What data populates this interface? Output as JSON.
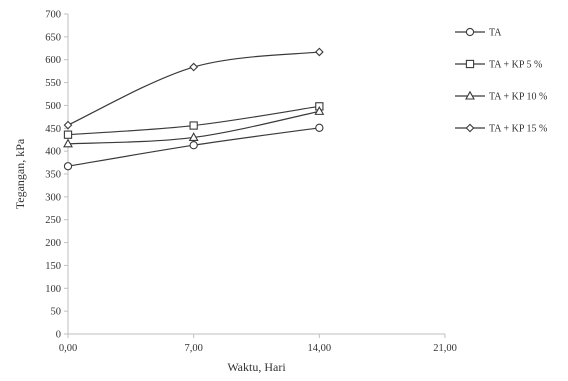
{
  "chart_data": {
    "type": "line",
    "xlabel": "Waktu, Hari",
    "ylabel": "Tegangan, kPa",
    "xlim": [
      0,
      21
    ],
    "ylim": [
      0,
      700
    ],
    "x_ticks": [
      0,
      7,
      14,
      21
    ],
    "x_tick_labels": [
      "0,00",
      "7,00",
      "14,00",
      "21,00"
    ],
    "y_ticks": [
      0,
      50,
      100,
      150,
      200,
      250,
      300,
      350,
      400,
      450,
      500,
      550,
      600,
      650,
      700
    ],
    "y_tick_labels": [
      "0",
      "50",
      "100",
      "150",
      "200",
      "250",
      "300",
      "350",
      "400",
      "450",
      "500",
      "550",
      "600",
      "650",
      "700"
    ],
    "grid": false,
    "legend_position": "right",
    "line_color": "#3a3a3a",
    "series": [
      {
        "name": "TA",
        "marker": "circle",
        "x": [
          0,
          7,
          14
        ],
        "y": [
          367,
          413,
          451
        ]
      },
      {
        "name": "TA + KP 5 %",
        "marker": "square",
        "x": [
          0,
          7,
          14
        ],
        "y": [
          436,
          456,
          498
        ]
      },
      {
        "name": "TA + KP 10 %",
        "marker": "triangle",
        "x": [
          0,
          7,
          14
        ],
        "y": [
          416,
          430,
          487
        ]
      },
      {
        "name": "TA + KP 15 %",
        "marker": "diamond",
        "x": [
          0,
          7,
          14
        ],
        "y": [
          457,
          584,
          617
        ]
      }
    ]
  }
}
